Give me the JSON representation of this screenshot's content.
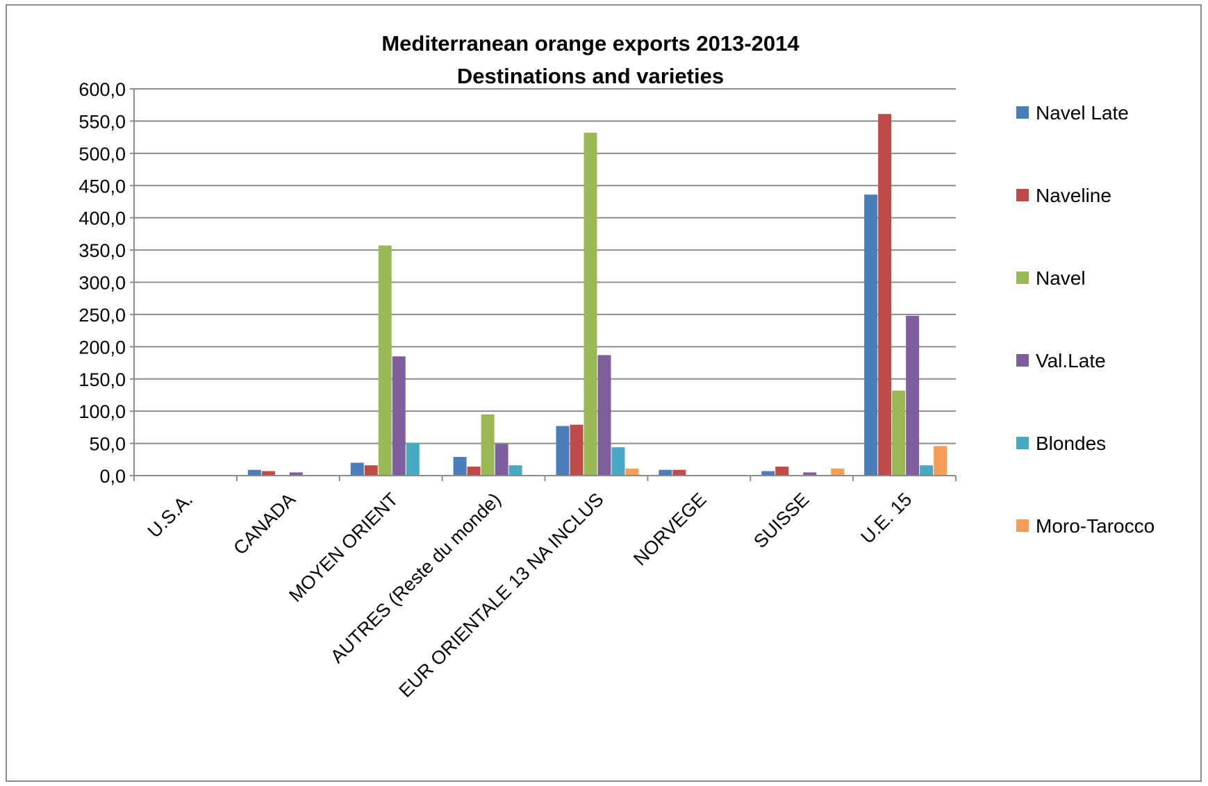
{
  "chart_data": {
    "type": "bar",
    "title": "Mediterranean orange exports 2013-2014",
    "subtitle": "Destinations and varieties",
    "xlabel": "",
    "ylabel": "",
    "ylim": [
      0,
      600
    ],
    "yticks": [
      "0,0",
      "50,0",
      "100,0",
      "150,0",
      "200,0",
      "250,0",
      "300,0",
      "350,0",
      "400,0",
      "450,0",
      "500,0",
      "550,0",
      "600,0"
    ],
    "grid": true,
    "legend_position": "right",
    "categories": [
      "U.S.A.",
      "CANADA",
      "MOYEN ORIENT",
      "AUTRES (Reste du monde)",
      "EUR ORIENTALE 13 NA INCLUS",
      "NORVEGE",
      "SUISSE",
      "U.E. 15"
    ],
    "series": [
      {
        "name": "Navel Late",
        "color": "#4a7ebb",
        "values": [
          0,
          9,
          20,
          29,
          77,
          9,
          7,
          436
        ]
      },
      {
        "name": "Naveline",
        "color": "#be4b48",
        "values": [
          0,
          7,
          16,
          14,
          79,
          9,
          14,
          561
        ]
      },
      {
        "name": "Navel",
        "color": "#98b954",
        "values": [
          0,
          0,
          357,
          95,
          532,
          0,
          0,
          132
        ]
      },
      {
        "name": "Val.Late",
        "color": "#7d5fa0",
        "values": [
          0,
          5,
          185,
          49,
          187,
          0,
          5,
          248
        ]
      },
      {
        "name": "Blondes",
        "color": "#46aac5",
        "values": [
          0,
          0,
          51,
          16,
          44,
          0,
          0,
          16
        ]
      },
      {
        "name": "Moro-Tarocco",
        "color": "#f59d56",
        "values": [
          0,
          0,
          0,
          0,
          11,
          0,
          11,
          46
        ]
      }
    ]
  }
}
